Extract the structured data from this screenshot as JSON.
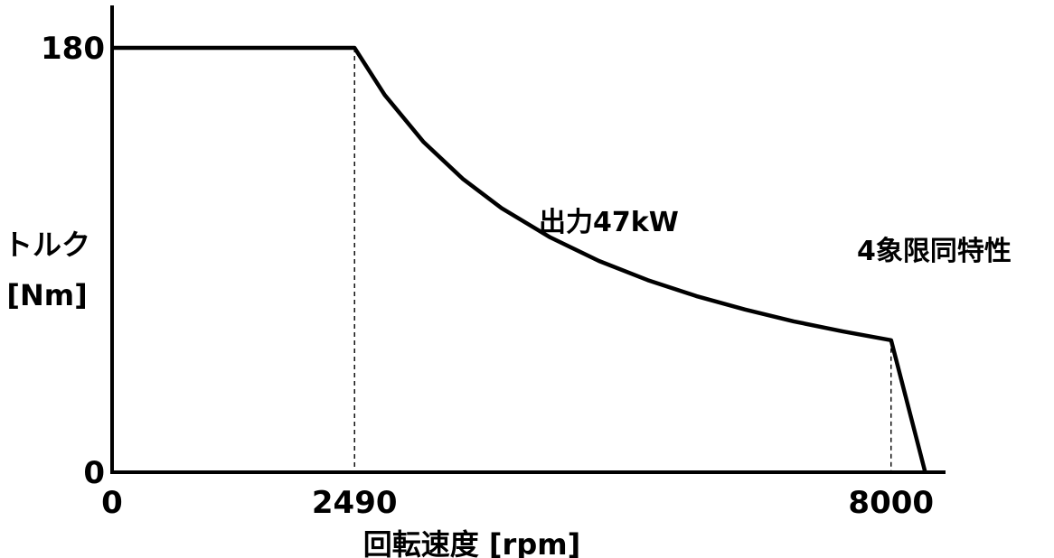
{
  "chart_data": {
    "type": "line",
    "title": "",
    "xlabel": "回転速度 [rpm]",
    "ylabel_line1": "トルク",
    "ylabel_line2": "[Nm]",
    "xlim": [
      0,
      8550
    ],
    "ylim": [
      0,
      180
    ],
    "x_ticks": [
      {
        "value": 0,
        "label": "0"
      },
      {
        "value": 2490,
        "label": "2490"
      },
      {
        "value": 8000,
        "label": "8000"
      }
    ],
    "y_ticks": [
      {
        "value": 0,
        "label": "0"
      },
      {
        "value": 180,
        "label": "180"
      }
    ],
    "series": [
      {
        "name": "",
        "color": "#000000",
        "points": [
          {
            "x": 0,
            "y": 180
          },
          {
            "x": 2490,
            "y": 180
          },
          {
            "x": 2800,
            "y": 160
          },
          {
            "x": 3200,
            "y": 140
          },
          {
            "x": 3600,
            "y": 124.5
          },
          {
            "x": 4000,
            "y": 112
          },
          {
            "x": 4500,
            "y": 99.6
          },
          {
            "x": 5000,
            "y": 89.6
          },
          {
            "x": 5500,
            "y": 81.5
          },
          {
            "x": 6000,
            "y": 74.7
          },
          {
            "x": 6500,
            "y": 69
          },
          {
            "x": 7000,
            "y": 64
          },
          {
            "x": 7500,
            "y": 59.8
          },
          {
            "x": 8000,
            "y": 56
          },
          {
            "x": 8350,
            "y": 0
          }
        ]
      }
    ],
    "dashed_guides": [
      {
        "x": 2490,
        "y": 180
      },
      {
        "x": 8000,
        "y": 56
      }
    ],
    "annotations": [
      {
        "id": "power",
        "text": "出力47kW"
      },
      {
        "id": "quadrant",
        "text": "4象限同特性"
      }
    ],
    "grid": false,
    "legend": "none"
  }
}
